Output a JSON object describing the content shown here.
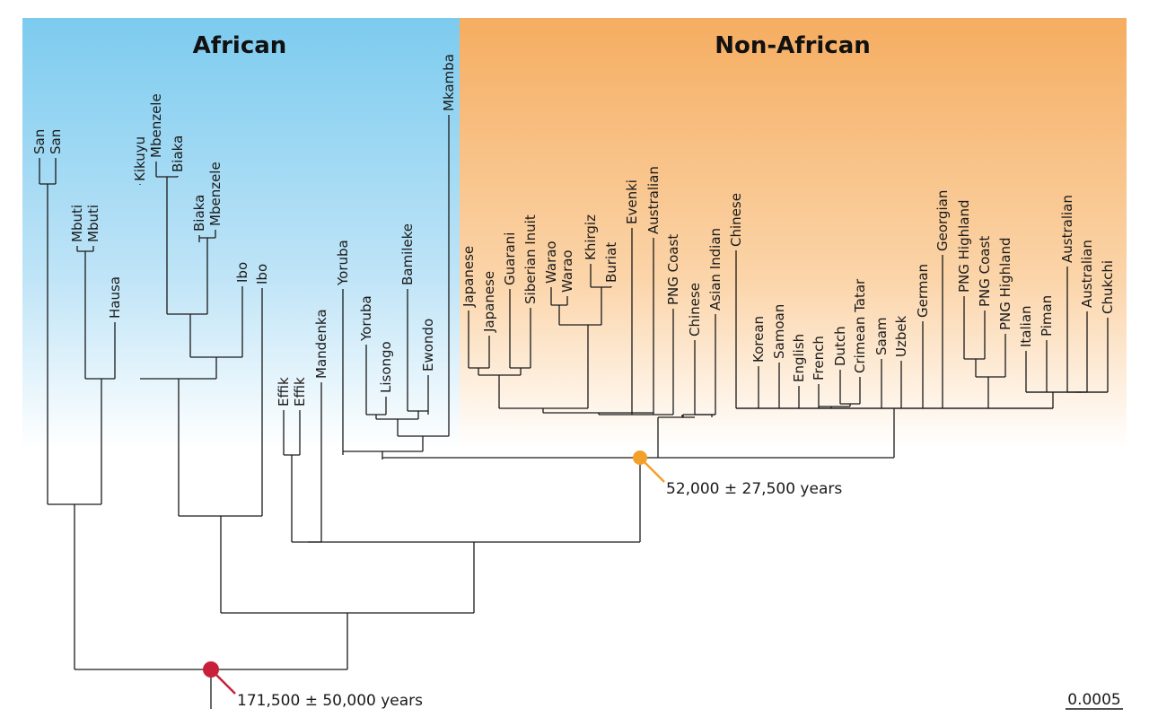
{
  "regions": {
    "african": "African",
    "non_african": "Non-African"
  },
  "colors": {
    "african": "#7ccbef",
    "non_african": "#f5ad61",
    "root_marker": "#c8203a",
    "split_marker": "#f3a02a"
  },
  "leaves": [
    "San",
    "San",
    "Mbuti",
    "Mbuti",
    "Hausa",
    "Kikuyu",
    "Mbenzele",
    "Biaka",
    "Biaka",
    "Mbenzele",
    "Ibo",
    "Ibo",
    "Effik",
    "Effik",
    "Mandenka",
    "Yoruba",
    "Yoruba",
    "Lisongo",
    "Bamileke",
    "Ewondo",
    "Mkamba",
    "Japanese",
    "Japanese",
    "Guarani",
    "Siberian Inuit",
    "Warao",
    "Warao",
    "Khirgiz",
    "Buriat",
    "Evenki",
    "Australian",
    "PNG Coast",
    "Chinese",
    "Asian Indian",
    "Chinese",
    "Korean",
    "Samoan",
    "English",
    "French",
    "Dutch",
    "Crimean Tatar",
    "Saam",
    "Uzbek",
    "German",
    "Georgian",
    "PNG Highland",
    "PNG Coast",
    "PNG Highland",
    "Italian",
    "Piman",
    "Australian",
    "Australian",
    "Chukchi"
  ],
  "annotations": {
    "root_age": "171,500 ± 50,000 years",
    "split_age": "52,000 ± 27,500 years",
    "scale": "0.0005"
  }
}
